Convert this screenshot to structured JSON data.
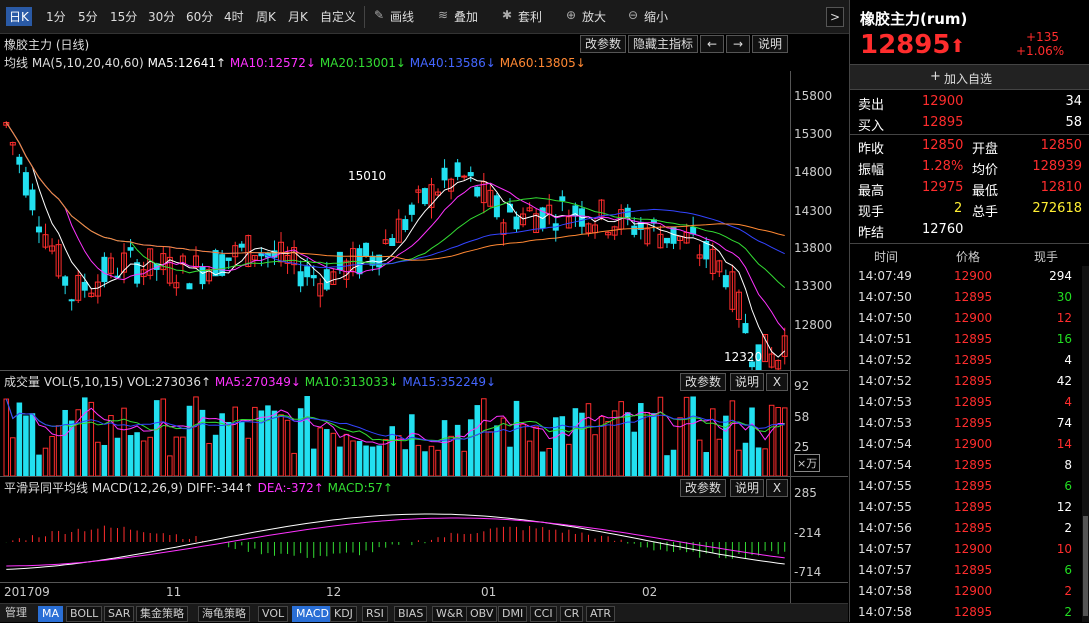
{
  "toolbar": {
    "periods": [
      "日K",
      "1分",
      "5分",
      "15分",
      "30分",
      "60分",
      "4时",
      "周K",
      "月K",
      "自定义"
    ],
    "tools": [
      "画线",
      "叠加",
      "套利",
      "放大",
      "缩小"
    ],
    "arrow": ">"
  },
  "main_panel": {
    "title": "橡胶主力 (日线)",
    "buttons": [
      "改参数",
      "隐藏主指标",
      "←",
      "→",
      "说明"
    ],
    "ma_label": "均线",
    "ma_params": "MA(5,10,20,40,60)",
    "ma5": "MA5:12641↑",
    "ma10": "MA10:12572↓",
    "ma20": "MA20:13001↓",
    "ma40": "MA40:13586↓",
    "ma60": "MA60:13805↓",
    "high_label": "15010",
    "low_label": "12320",
    "y_ticks": [
      "15800",
      "15300",
      "14800",
      "14300",
      "13800",
      "13300",
      "12800"
    ]
  },
  "vol_panel": {
    "title": "成交量",
    "params": "VOL(5,10,15)",
    "vol": "VOL:273036↑",
    "ma5": "MA5:270349↓",
    "ma10": "MA10:313033↓",
    "ma15": "MA15:352249↓",
    "buttons": [
      "改参数",
      "说明",
      "X"
    ],
    "y_ticks": [
      "92",
      "58",
      "25"
    ],
    "unit": "×万"
  },
  "macd_panel": {
    "title": "平滑异同平均线",
    "params": "MACD(12,26,9)",
    "diff": "DIFF:-344↑",
    "dea": "DEA:-372↑",
    "macd": "MACD:57↑",
    "buttons": [
      "改参数",
      "说明",
      "X"
    ],
    "y_ticks": [
      "285",
      "-214",
      "-714"
    ]
  },
  "x_axis": [
    "201709",
    "11",
    "12",
    "01",
    "02"
  ],
  "bottom_tabs": [
    "管理",
    "MA",
    "BOLL",
    "SAR",
    "集金策略",
    "海龟策略",
    "VOL",
    "MACD",
    "KDJ",
    "RSI",
    "BIAS",
    "W&R",
    "OBV",
    "DMI",
    "CCI",
    "CR",
    "ATR"
  ],
  "quote": {
    "name": "橡胶主力(rum)",
    "price": "12895",
    "change": "+135",
    "change_pct": "+1.06%",
    "add_watch": "加入自选",
    "sell_label": "卖出",
    "sell_price": "12900",
    "sell_vol": "34",
    "buy_label": "买入",
    "buy_price": "12895",
    "buy_vol": "58",
    "rows": [
      {
        "l1": "昨收",
        "v1": "12850",
        "l2": "开盘",
        "v2": "12850"
      },
      {
        "l1": "振幅",
        "v1": "1.28%",
        "l2": "均价",
        "v2": "128939"
      },
      {
        "l1": "最高",
        "v1": "12975",
        "l2": "最低",
        "v2": "12810"
      },
      {
        "l1": "现手",
        "v1": "2",
        "l2": "总手",
        "v2": "272618"
      },
      {
        "l1": "昨结",
        "v1": "12760",
        "l2": "",
        "v2": ""
      }
    ],
    "tick_headers": [
      "时间",
      "价格",
      "现手"
    ],
    "ticks": [
      {
        "t": "14:07:49",
        "p": "12900",
        "v": "294",
        "c": "white"
      },
      {
        "t": "14:07:50",
        "p": "12895",
        "v": "30",
        "c": "green"
      },
      {
        "t": "14:07:50",
        "p": "12900",
        "v": "12",
        "c": "red"
      },
      {
        "t": "14:07:51",
        "p": "12895",
        "v": "16",
        "c": "green"
      },
      {
        "t": "14:07:52",
        "p": "12895",
        "v": "4",
        "c": "white"
      },
      {
        "t": "14:07:52",
        "p": "12895",
        "v": "42",
        "c": "white"
      },
      {
        "t": "14:07:53",
        "p": "12895",
        "v": "4",
        "c": "red"
      },
      {
        "t": "14:07:53",
        "p": "12895",
        "v": "74",
        "c": "white"
      },
      {
        "t": "14:07:54",
        "p": "12900",
        "v": "14",
        "c": "red"
      },
      {
        "t": "14:07:54",
        "p": "12895",
        "v": "8",
        "c": "white"
      },
      {
        "t": "14:07:55",
        "p": "12895",
        "v": "6",
        "c": "green"
      },
      {
        "t": "14:07:55",
        "p": "12895",
        "v": "12",
        "c": "white"
      },
      {
        "t": "14:07:56",
        "p": "12895",
        "v": "2",
        "c": "white"
      },
      {
        "t": "14:07:57",
        "p": "12900",
        "v": "10",
        "c": "red"
      },
      {
        "t": "14:07:57",
        "p": "12895",
        "v": "6",
        "c": "green"
      },
      {
        "t": "14:07:58",
        "p": "12900",
        "v": "2",
        "c": "red"
      },
      {
        "t": "14:07:58",
        "p": "12895",
        "v": "2",
        "c": "green"
      }
    ]
  },
  "colors": {
    "up": "#ff2d2d",
    "down": "#22e0f0",
    "ma5": "#ffffff",
    "ma10": "#ff33ff",
    "ma20": "#33dd33",
    "ma40": "#3344ff",
    "ma60": "#ff8833"
  }
}
